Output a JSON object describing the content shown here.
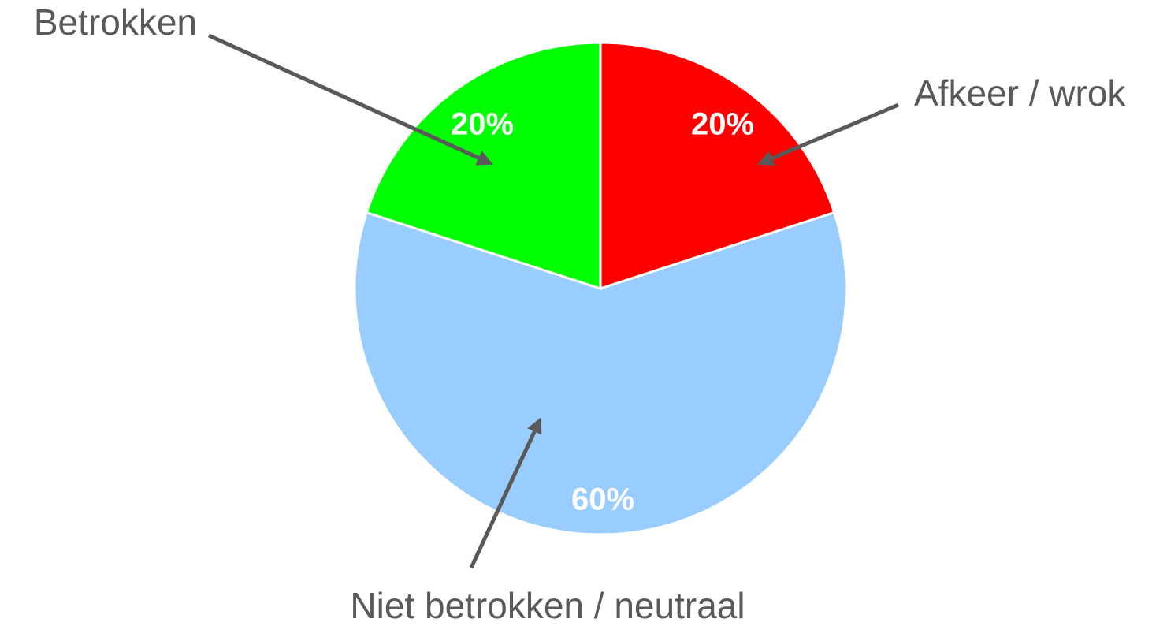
{
  "chart_data": {
    "type": "pie",
    "categories": [
      "Afkeer / wrok",
      "Niet betrokken / neutraal",
      "Betrokken"
    ],
    "values": [
      20,
      60,
      20
    ],
    "value_labels": [
      "20%",
      "60%",
      "20%"
    ],
    "colors": [
      "#ff0000",
      "#99ccff",
      "#00ff00"
    ]
  }
}
